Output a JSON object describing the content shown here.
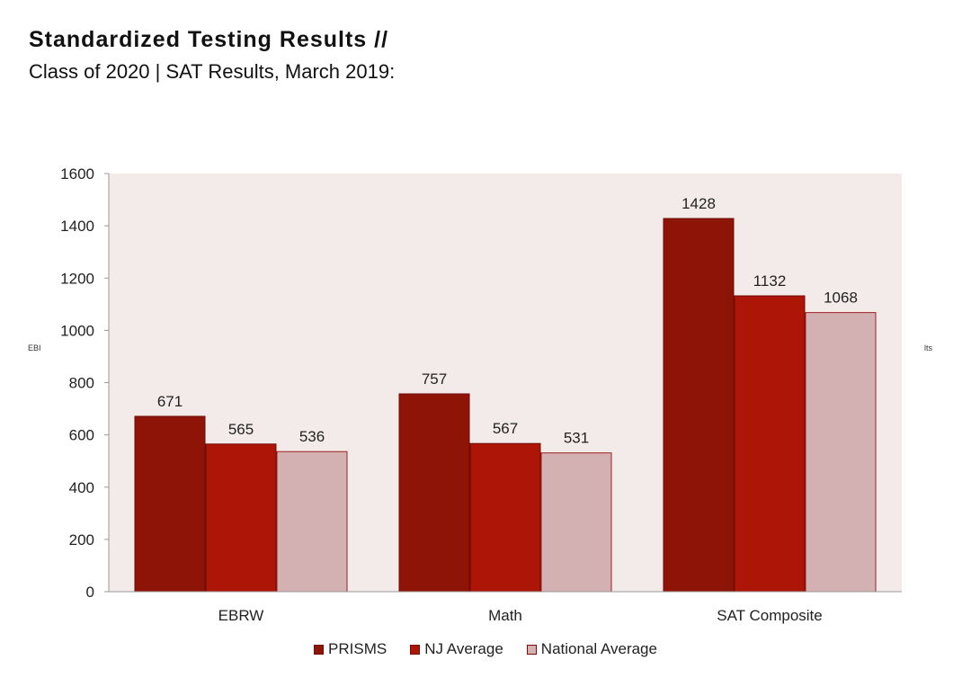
{
  "header": {
    "title": "Standardized Testing Results //",
    "subtitle": "Class of 2020 | SAT Results, March 2019:"
  },
  "stray_text": {
    "left": "EBI",
    "right": "lts"
  },
  "chart_data": {
    "type": "bar",
    "categories": [
      "EBRW",
      "Math",
      "SAT Composite"
    ],
    "series": [
      {
        "name": "PRISMS",
        "values": [
          671,
          757,
          1428
        ],
        "color": "#8e1408"
      },
      {
        "name": "NJ Average",
        "values": [
          565,
          567,
          1132
        ],
        "color": "#ad1606"
      },
      {
        "name": "National Average",
        "values": [
          536,
          531,
          1068
        ],
        "color": "#d3b1b3"
      }
    ],
    "title": "",
    "xlabel": "",
    "ylabel": "",
    "ylim": [
      0,
      1600
    ],
    "yticks": [
      0,
      200,
      400,
      600,
      800,
      1000,
      1200,
      1400,
      1600
    ],
    "grid": false,
    "plot_background": "#f3eaea",
    "legend_placement": "bottom"
  }
}
